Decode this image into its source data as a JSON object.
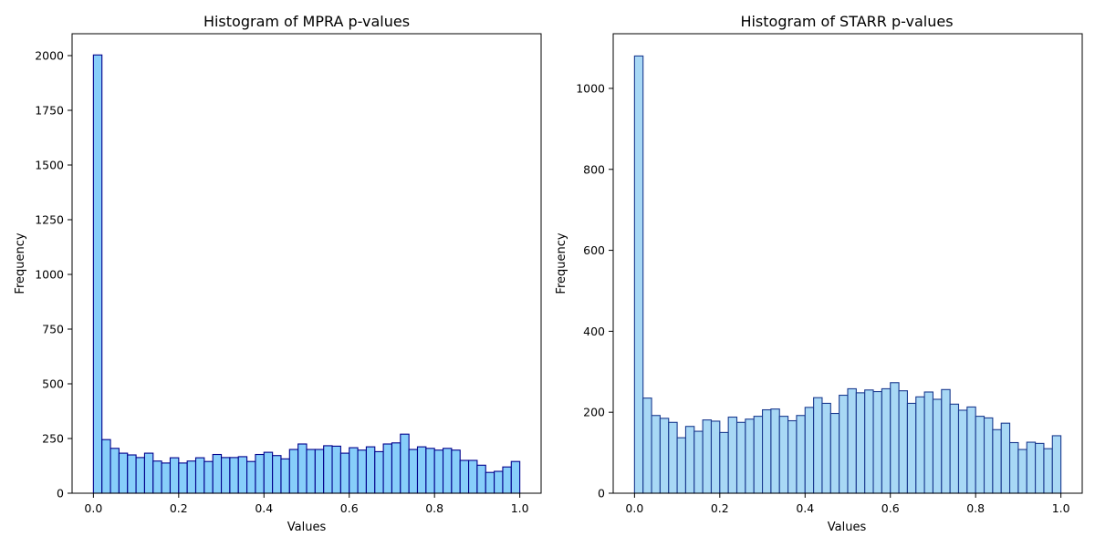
{
  "chart_data": [
    {
      "type": "bar",
      "title": "Histogram of MPRA p-values",
      "xlabel": "Values",
      "ylabel": "Frequency",
      "xlim": [
        -0.05,
        1.05
      ],
      "ylim": [
        0,
        2100
      ],
      "xticks": [
        "0.0",
        "0.2",
        "0.4",
        "0.6",
        "0.8",
        "1.0"
      ],
      "yticks": [
        "0",
        "250",
        "500",
        "750",
        "1000",
        "1250",
        "1500",
        "1750",
        "2000"
      ],
      "bin_range": [
        0,
        1
      ],
      "bins": 50,
      "bar_color": "#87cefa",
      "edge_color": "#00008b",
      "values": [
        2003,
        245,
        205,
        183,
        175,
        163,
        183,
        147,
        138,
        162,
        138,
        147,
        162,
        145,
        177,
        163,
        163,
        167,
        145,
        177,
        187,
        172,
        157,
        200,
        225,
        200,
        200,
        217,
        215,
        183,
        208,
        197,
        212,
        190,
        225,
        230,
        270,
        200,
        212,
        205,
        197,
        205,
        197,
        150,
        150,
        128,
        95,
        100,
        120,
        145
      ]
    },
    {
      "type": "bar",
      "title": "Histogram of STARR p-values",
      "xlabel": "Values",
      "ylabel": "Frequency",
      "xlim": [
        -0.05,
        1.05
      ],
      "ylim": [
        0,
        1135
      ],
      "xticks": [
        "0.0",
        "0.2",
        "0.4",
        "0.6",
        "0.8",
        "1.0"
      ],
      "yticks": [
        "0",
        "200",
        "400",
        "600",
        "800",
        "1000"
      ],
      "bin_range": [
        0,
        1
      ],
      "bins": 50,
      "bar_color": "#a8d8f5",
      "edge_color": "#1a3a8f",
      "values": [
        1080,
        235,
        192,
        185,
        175,
        137,
        165,
        153,
        181,
        178,
        150,
        188,
        175,
        183,
        190,
        206,
        208,
        190,
        179,
        192,
        212,
        236,
        222,
        197,
        242,
        258,
        248,
        255,
        251,
        258,
        273,
        253,
        222,
        238,
        250,
        232,
        256,
        220,
        205,
        213,
        190,
        186,
        157,
        173,
        125,
        108,
        126,
        123,
        110,
        142
      ]
    }
  ]
}
